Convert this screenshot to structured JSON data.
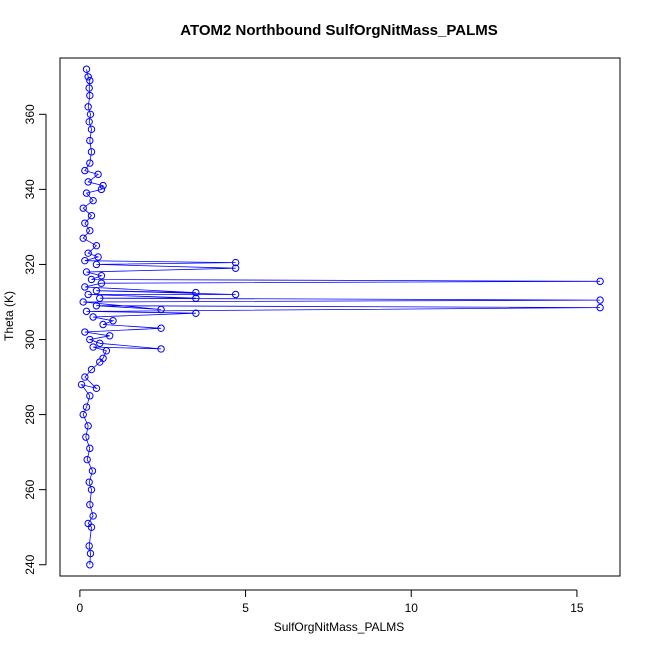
{
  "chart_data": {
    "type": "scatter",
    "title": "ATOM2 Northbound SulfOrgNitMass_PALMS",
    "xlabel": "SulfOrgNitMass_PALMS",
    "ylabel": "Theta (K)",
    "xlim": [
      -0.6,
      16.3
    ],
    "ylim": [
      237,
      375
    ],
    "x_ticks": [
      0,
      5,
      10,
      15
    ],
    "y_ticks": [
      240,
      260,
      280,
      300,
      320,
      340,
      360
    ],
    "x_tick_labels": [
      "0",
      "5",
      "10",
      "15"
    ],
    "y_tick_labels": [
      "240",
      "260",
      "280",
      "300",
      "320",
      "340",
      "360"
    ],
    "grid": false,
    "legend": "none",
    "marker": "open-circle",
    "connected": true,
    "color": "#0000ff",
    "series": [
      {
        "points": [
          [
            0.3,
            240.0
          ],
          [
            0.32,
            243.0
          ],
          [
            0.28,
            245.0
          ],
          [
            0.35,
            250.0
          ],
          [
            0.25,
            251.0
          ],
          [
            0.4,
            253.0
          ],
          [
            0.3,
            256.0
          ],
          [
            0.35,
            260.0
          ],
          [
            0.28,
            262.0
          ],
          [
            0.38,
            265.0
          ],
          [
            0.22,
            268.0
          ],
          [
            0.3,
            271.0
          ],
          [
            0.18,
            274.0
          ],
          [
            0.25,
            277.0
          ],
          [
            0.1,
            280.0
          ],
          [
            0.2,
            282.0
          ],
          [
            0.3,
            285.0
          ],
          [
            0.05,
            288.0
          ],
          [
            0.5,
            287.0
          ],
          [
            0.15,
            290.0
          ],
          [
            0.35,
            292.0
          ],
          [
            0.6,
            294.0
          ],
          [
            0.7,
            295.0
          ],
          [
            0.8,
            297.0
          ],
          [
            0.4,
            298.0
          ],
          [
            2.45,
            297.5
          ],
          [
            0.6,
            299.0
          ],
          [
            0.3,
            300.0
          ],
          [
            0.9,
            301.0
          ],
          [
            0.15,
            302.0
          ],
          [
            2.45,
            303.0
          ],
          [
            0.7,
            304.0
          ],
          [
            1.0,
            305.0
          ],
          [
            0.4,
            306.0
          ],
          [
            3.5,
            307.0
          ],
          [
            0.2,
            307.5
          ],
          [
            15.7,
            308.5
          ],
          [
            0.5,
            309.0
          ],
          [
            2.45,
            308.0
          ],
          [
            0.1,
            310.0
          ],
          [
            15.7,
            310.5
          ],
          [
            0.6,
            311.0
          ],
          [
            3.5,
            311.0
          ],
          [
            0.25,
            312.0
          ],
          [
            4.7,
            312.0
          ],
          [
            0.5,
            313.0
          ],
          [
            3.5,
            312.5
          ],
          [
            0.15,
            314.0
          ],
          [
            0.65,
            315.0
          ],
          [
            15.7,
            315.5
          ],
          [
            0.35,
            316.0
          ],
          [
            0.65,
            317.0
          ],
          [
            0.2,
            318.0
          ],
          [
            4.7,
            319.0
          ],
          [
            0.5,
            320.0
          ],
          [
            4.7,
            320.5
          ],
          [
            0.15,
            321.0
          ],
          [
            0.55,
            322.0
          ],
          [
            0.25,
            323.0
          ],
          [
            0.5,
            325.0
          ],
          [
            0.1,
            327.0
          ],
          [
            0.3,
            329.0
          ],
          [
            0.15,
            331.0
          ],
          [
            0.35,
            333.0
          ],
          [
            0.1,
            335.0
          ],
          [
            0.4,
            337.0
          ],
          [
            0.2,
            339.0
          ],
          [
            0.65,
            340.0
          ],
          [
            0.7,
            341.0
          ],
          [
            0.25,
            342.0
          ],
          [
            0.55,
            344.0
          ],
          [
            0.15,
            345.0
          ],
          [
            0.3,
            347.0
          ],
          [
            0.35,
            350.0
          ],
          [
            0.3,
            353.0
          ],
          [
            0.35,
            356.0
          ],
          [
            0.28,
            358.0
          ],
          [
            0.32,
            360.0
          ],
          [
            0.25,
            362.0
          ],
          [
            0.3,
            365.0
          ],
          [
            0.28,
            367.0
          ],
          [
            0.3,
            369.0
          ],
          [
            0.25,
            370.0
          ],
          [
            0.2,
            372.0
          ]
        ]
      }
    ]
  }
}
